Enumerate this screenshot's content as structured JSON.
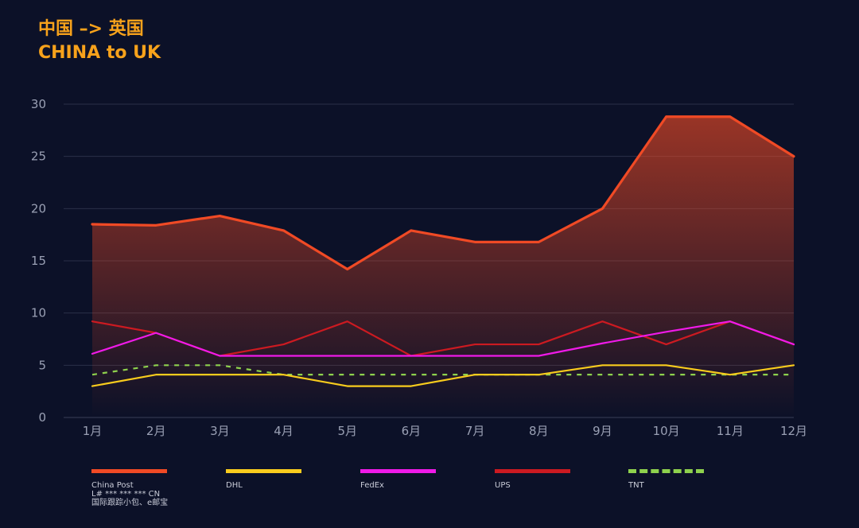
{
  "title": {
    "line1": "中国 –> 英国",
    "line2": "CHINA to UK"
  },
  "chart_data": {
    "type": "line",
    "title": "中国 –> 英国 CHINA to UK",
    "xlabel": "",
    "ylabel": "",
    "categories": [
      "1月",
      "2月",
      "3月",
      "4月",
      "5月",
      "6月",
      "7月",
      "8月",
      "9月",
      "10月",
      "11月",
      "12月"
    ],
    "ylim": [
      0,
      30
    ],
    "yticks": [
      "0",
      "5",
      "10",
      "15",
      "20",
      "25",
      "30"
    ],
    "grid": true,
    "legend_position": "bottom",
    "series": [
      {
        "name": "China Post",
        "sub": [
          "L# *** *** *** CN",
          "国际跟踪小包、e邮宝"
        ],
        "color": "#f04a25",
        "style": "solid",
        "area": true,
        "values": [
          18.5,
          18.4,
          19.3,
          17.9,
          14.2,
          17.9,
          16.8,
          16.8,
          20.0,
          28.8,
          28.8,
          25.0
        ]
      },
      {
        "name": "DHL",
        "sub": [],
        "color": "#f9cc1d",
        "style": "solid",
        "area": false,
        "values": [
          3.0,
          4.1,
          4.1,
          4.1,
          3.0,
          3.0,
          4.1,
          4.1,
          5.0,
          5.0,
          4.1,
          5.0
        ]
      },
      {
        "name": "FedEx",
        "sub": [],
        "color": "#ef1ae8",
        "style": "solid",
        "area": false,
        "values": [
          6.1,
          8.1,
          5.9,
          5.9,
          5.9,
          5.9,
          5.9,
          5.9,
          7.1,
          8.2,
          9.2,
          7.0
        ]
      },
      {
        "name": "UPS",
        "sub": [],
        "color": "#cc1a21",
        "style": "solid",
        "area": false,
        "values": [
          9.2,
          8.1,
          5.9,
          7.0,
          9.2,
          5.9,
          7.0,
          7.0,
          9.2,
          7.0,
          9.2,
          7.0
        ]
      },
      {
        "name": "TNT",
        "sub": [],
        "color": "#8ed14d",
        "style": "dashed",
        "area": false,
        "values": [
          4.1,
          5.0,
          5.0,
          4.1,
          4.1,
          4.1,
          4.1,
          4.1,
          4.1,
          4.1,
          4.1,
          4.1
        ]
      }
    ]
  }
}
